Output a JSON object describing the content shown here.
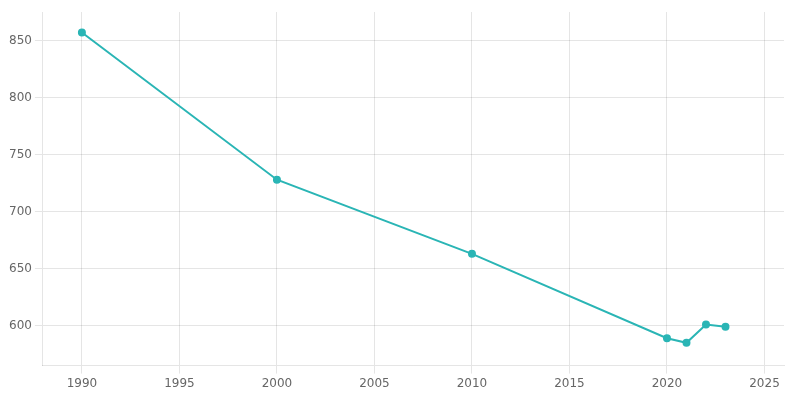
{
  "chart_data": {
    "type": "line",
    "x": [
      1990,
      2000,
      2010,
      2020,
      2021,
      2022,
      2023
    ],
    "values": [
      857,
      728,
      663,
      589,
      585,
      601,
      599
    ],
    "color": "#2ab5b5",
    "marker": "circle",
    "xlim": [
      1988,
      2026
    ],
    "ylim": [
      565,
      875
    ],
    "xticks": [
      1990,
      1995,
      2000,
      2005,
      2010,
      2015,
      2020,
      2025
    ],
    "yticks": [
      600,
      650,
      700,
      750,
      800,
      850
    ],
    "grid": true
  }
}
